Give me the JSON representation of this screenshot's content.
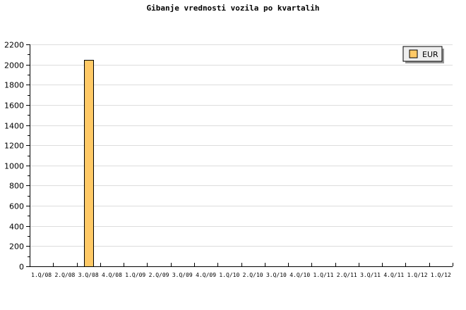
{
  "chart_data": {
    "type": "bar",
    "title": "Gibanje vrednosti vozila po kvartalih",
    "xlabel": "",
    "ylabel": "",
    "ylim": [
      0,
      2200
    ],
    "yticks": [
      0,
      200,
      400,
      600,
      800,
      1000,
      1200,
      1400,
      1600,
      1800,
      2000,
      2200
    ],
    "grid": true,
    "legend_position": "top-right",
    "categories": [
      "1.Q/08",
      "2.Q/08",
      "3.Q/08",
      "4.Q/08",
      "1.Q/09",
      "2.Q/09",
      "3.Q/09",
      "4.Q/09",
      "1.Q/10",
      "2.Q/10",
      "3.Q/10",
      "4.Q/10",
      "1.Q/11",
      "2.Q/11",
      "3.Q/11",
      "4.Q/11",
      "1.Q/12",
      "1.Q/12"
    ],
    "series": [
      {
        "name": "EUR",
        "color": "#ffc966",
        "values": [
          null,
          null,
          2045,
          null,
          null,
          null,
          null,
          null,
          null,
          null,
          null,
          null,
          null,
          null,
          null,
          null,
          null,
          null
        ]
      }
    ]
  }
}
